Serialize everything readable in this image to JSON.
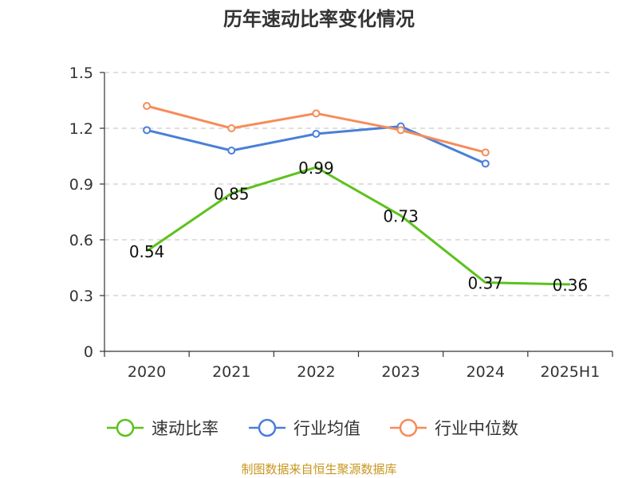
{
  "title": "历年速动比率变化情况",
  "source": "制图数据来自恒生聚源数据库",
  "colors": {
    "grid": "#cccccc",
    "axis": "#333333"
  },
  "chart_data": {
    "type": "line",
    "categories": [
      "2020",
      "2021",
      "2022",
      "2023",
      "2024",
      "2025H1"
    ],
    "ylim": [
      0,
      1.5
    ],
    "yticks": [
      0,
      0.3,
      0.6,
      0.9,
      1.2,
      1.5
    ],
    "ytick_labels": [
      "0",
      "0.3",
      "0.6",
      "0.9",
      "1.2",
      "1.5"
    ],
    "grid": true,
    "legend_position": "bottom",
    "series": [
      {
        "name": "速动比率",
        "color": "#5cc21c",
        "values": [
          0.54,
          0.85,
          0.99,
          0.73,
          0.37,
          0.36
        ],
        "labels": [
          "0.54",
          "0.85",
          "0.99",
          "0.73",
          "0.37",
          "0.36"
        ],
        "show_labels": true,
        "show_markers": false
      },
      {
        "name": "行业均值",
        "color": "#4a7fd8",
        "values": [
          1.19,
          1.08,
          1.17,
          1.21,
          1.01,
          null
        ],
        "show_labels": false,
        "show_markers": true
      },
      {
        "name": "行业中位数",
        "color": "#f68c5a",
        "values": [
          1.32,
          1.2,
          1.28,
          1.19,
          1.07,
          null
        ],
        "show_labels": false,
        "show_markers": true
      }
    ]
  }
}
